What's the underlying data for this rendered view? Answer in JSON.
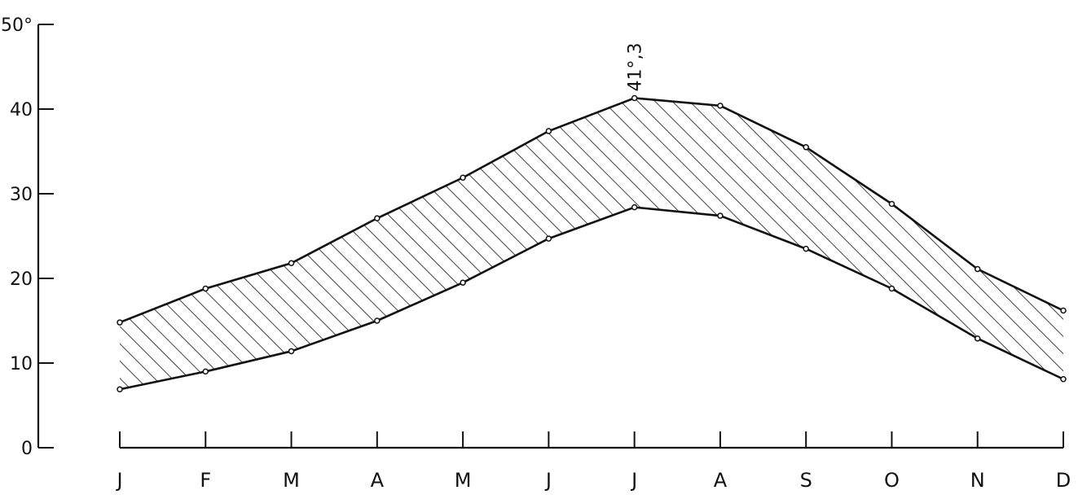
{
  "chart_data": {
    "type": "area",
    "title": "",
    "xlabel": "",
    "ylabel": "",
    "categories": [
      "J",
      "F",
      "M",
      "A",
      "M",
      "J",
      "J",
      "A",
      "S",
      "O",
      "N",
      "D"
    ],
    "y_ticks": [
      "0",
      "10",
      "20",
      "30",
      "40",
      "50°"
    ],
    "ylim": [
      0,
      50
    ],
    "grid": false,
    "fill": "diagonal hatching between the two lines",
    "series": [
      {
        "values": [
          14.8,
          18.8,
          21.8,
          27.1,
          31.9,
          37.4,
          41.3,
          40.4,
          35.5,
          28.8,
          21.1,
          16.2
        ]
      },
      {
        "values": [
          6.9,
          9.0,
          11.4,
          15.0,
          19.5,
          24.7,
          28.4,
          27.4,
          23.5,
          18.8,
          12.9,
          8.1
        ]
      }
    ],
    "annotations": [
      {
        "text": "41°,3",
        "category_index": 6,
        "series_index": 0
      }
    ],
    "colors": {
      "ink": "#111111",
      "background": "#ffffff"
    }
  }
}
